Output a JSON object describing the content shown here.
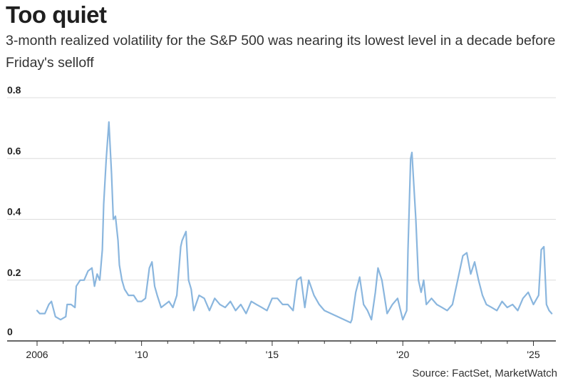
{
  "title": "Too quiet",
  "subtitle": "3-month realized volatility for the S&P 500 was nearing its lowest level in a decade before Friday's selloff",
  "source": "Source: FactSet, MarketWatch",
  "chart_data": {
    "type": "line",
    "title": "Too quiet",
    "subtitle": "3-month realized volatility for the S&P 500 was nearing its lowest level in a decade before Friday's selloff",
    "xlabel": "",
    "ylabel": "",
    "ylim": [
      0,
      0.8
    ],
    "xlim": [
      2006,
      2025.75
    ],
    "grid": true,
    "y_ticks": [
      {
        "value": 0,
        "label": "0"
      },
      {
        "value": 0.2,
        "label": "0.2"
      },
      {
        "value": 0.4,
        "label": "0.4"
      },
      {
        "value": 0.6,
        "label": "0.6"
      },
      {
        "value": 0.8,
        "label": "0.8"
      }
    ],
    "x_ticks": [
      {
        "value": 2006,
        "label": "2006"
      },
      {
        "value": 2010,
        "label": "'10"
      },
      {
        "value": 2015,
        "label": "'15"
      },
      {
        "value": 2020,
        "label": "'20"
      },
      {
        "value": 2025,
        "label": "'25"
      }
    ],
    "line_color": "#8ab6de",
    "series": [
      {
        "name": "",
        "x": [
          2006.0,
          2006.1,
          2006.3,
          2006.45,
          2006.55,
          2006.7,
          2006.9,
          2007.1,
          2007.15,
          2007.3,
          2007.45,
          2007.5,
          2007.65,
          2007.8,
          2007.95,
          2008.1,
          2008.2,
          2008.3,
          2008.4,
          2008.5,
          2008.55,
          2008.65,
          2008.75,
          2008.85,
          2008.92,
          2009.0,
          2009.1,
          2009.15,
          2009.25,
          2009.35,
          2009.5,
          2009.7,
          2009.85,
          2010.0,
          2010.15,
          2010.3,
          2010.4,
          2010.5,
          2010.6,
          2010.75,
          2010.9,
          2011.05,
          2011.2,
          2011.35,
          2011.5,
          2011.55,
          2011.7,
          2011.8,
          2011.9,
          2012.0,
          2012.2,
          2012.4,
          2012.6,
          2012.8,
          2013.0,
          2013.2,
          2013.4,
          2013.6,
          2013.8,
          2014.0,
          2014.2,
          2014.4,
          2014.6,
          2014.8,
          2015.0,
          2015.2,
          2015.4,
          2015.6,
          2015.8,
          2015.95,
          2016.1,
          2016.25,
          2016.4,
          2016.6,
          2016.8,
          2017.0,
          2017.5,
          2018.0,
          2018.05,
          2018.2,
          2018.35,
          2018.5,
          2018.65,
          2018.8,
          2018.95,
          2019.05,
          2019.2,
          2019.4,
          2019.6,
          2019.8,
          2020.0,
          2020.15,
          2020.2,
          2020.3,
          2020.35,
          2020.5,
          2020.6,
          2020.7,
          2020.8,
          2020.9,
          2021.1,
          2021.3,
          2021.5,
          2021.7,
          2021.9,
          2022.1,
          2022.3,
          2022.45,
          2022.6,
          2022.75,
          2022.9,
          2023.05,
          2023.2,
          2023.4,
          2023.6,
          2023.8,
          2024.0,
          2024.2,
          2024.4,
          2024.6,
          2024.8,
          2025.0,
          2025.2,
          2025.3,
          2025.4,
          2025.5,
          2025.6,
          2025.7
        ],
        "y": [
          0.1,
          0.09,
          0.09,
          0.12,
          0.13,
          0.08,
          0.07,
          0.08,
          0.12,
          0.12,
          0.11,
          0.18,
          0.2,
          0.2,
          0.23,
          0.24,
          0.18,
          0.22,
          0.2,
          0.3,
          0.45,
          0.6,
          0.72,
          0.55,
          0.4,
          0.41,
          0.33,
          0.25,
          0.2,
          0.17,
          0.15,
          0.15,
          0.13,
          0.13,
          0.14,
          0.24,
          0.26,
          0.18,
          0.15,
          0.11,
          0.12,
          0.13,
          0.11,
          0.15,
          0.31,
          0.33,
          0.36,
          0.2,
          0.17,
          0.1,
          0.15,
          0.14,
          0.1,
          0.14,
          0.12,
          0.11,
          0.13,
          0.1,
          0.12,
          0.09,
          0.13,
          0.12,
          0.11,
          0.1,
          0.14,
          0.14,
          0.12,
          0.12,
          0.1,
          0.2,
          0.21,
          0.11,
          0.2,
          0.15,
          0.12,
          0.1,
          0.08,
          0.06,
          0.07,
          0.16,
          0.21,
          0.12,
          0.1,
          0.07,
          0.16,
          0.24,
          0.2,
          0.09,
          0.12,
          0.14,
          0.07,
          0.1,
          0.3,
          0.6,
          0.62,
          0.4,
          0.2,
          0.16,
          0.2,
          0.12,
          0.14,
          0.12,
          0.11,
          0.1,
          0.12,
          0.2,
          0.28,
          0.29,
          0.22,
          0.26,
          0.2,
          0.15,
          0.12,
          0.11,
          0.1,
          0.13,
          0.11,
          0.12,
          0.1,
          0.14,
          0.16,
          0.12,
          0.15,
          0.3,
          0.31,
          0.12,
          0.1,
          0.09
        ]
      }
    ]
  }
}
